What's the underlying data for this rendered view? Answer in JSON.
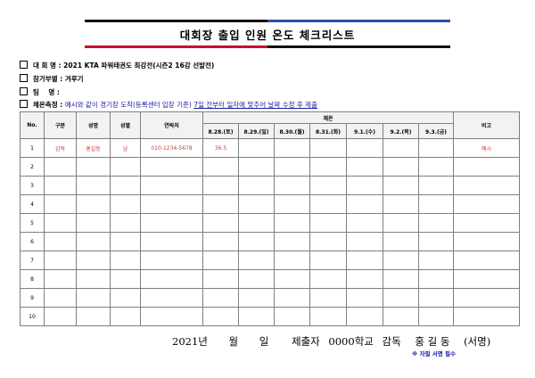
{
  "title": "대회장 출입 인원 온도 체크리스트",
  "info": {
    "event_label": "대 회 명 :",
    "event_value": "2021 KTA 파워태권도 최강전(시즌2 16강 선발전)",
    "division_label": "참가부별 :",
    "division_value": "겨루기",
    "team_label": "팀    명 :",
    "team_value": "",
    "temp_label": "체온측정 :",
    "temp_note_plain": "예시와 같이 경기장 도착(등록센터 입장 기준)",
    "temp_note_underline": "7일 전부터 일자에 맞추어 날짜 수정 후 제출"
  },
  "table": {
    "headers": {
      "no": "No.",
      "category": "구분",
      "name": "성명",
      "gender": "성별",
      "contact": "연락처",
      "temp_group": "체온",
      "remarks": "비고"
    },
    "dates": [
      "8.28.(토)",
      "8.29.(일)",
      "8.30.(월)",
      "8.31.(화)",
      "9.1.(수)",
      "9.2.(목)",
      "9.3.(금)"
    ],
    "rows": [
      {
        "no": "1",
        "category": "감독",
        "name": "홍길동",
        "gender": "남",
        "contact": "010-1234-5678",
        "temps": [
          "36.5",
          "",
          "",
          "",
          "",
          "",
          ""
        ],
        "remarks": "예시"
      },
      {
        "no": "2",
        "category": "",
        "name": "",
        "gender": "",
        "contact": "",
        "temps": [
          "",
          "",
          "",
          "",
          "",
          "",
          ""
        ],
        "remarks": ""
      },
      {
        "no": "3",
        "category": "",
        "name": "",
        "gender": "",
        "contact": "",
        "temps": [
          "",
          "",
          "",
          "",
          "",
          "",
          ""
        ],
        "remarks": ""
      },
      {
        "no": "4",
        "category": "",
        "name": "",
        "gender": "",
        "contact": "",
        "temps": [
          "",
          "",
          "",
          "",
          "",
          "",
          ""
        ],
        "remarks": ""
      },
      {
        "no": "5",
        "category": "",
        "name": "",
        "gender": "",
        "contact": "",
        "temps": [
          "",
          "",
          "",
          "",
          "",
          "",
          ""
        ],
        "remarks": ""
      },
      {
        "no": "6",
        "category": "",
        "name": "",
        "gender": "",
        "contact": "",
        "temps": [
          "",
          "",
          "",
          "",
          "",
          "",
          ""
        ],
        "remarks": ""
      },
      {
        "no": "7",
        "category": "",
        "name": "",
        "gender": "",
        "contact": "",
        "temps": [
          "",
          "",
          "",
          "",
          "",
          "",
          ""
        ],
        "remarks": ""
      },
      {
        "no": "8",
        "category": "",
        "name": "",
        "gender": "",
        "contact": "",
        "temps": [
          "",
          "",
          "",
          "",
          "",
          "",
          ""
        ],
        "remarks": ""
      },
      {
        "no": "9",
        "category": "",
        "name": "",
        "gender": "",
        "contact": "",
        "temps": [
          "",
          "",
          "",
          "",
          "",
          "",
          ""
        ],
        "remarks": ""
      },
      {
        "no": "10",
        "category": "",
        "name": "",
        "gender": "",
        "contact": "",
        "temps": [
          "",
          "",
          "",
          "",
          "",
          "",
          ""
        ],
        "remarks": ""
      }
    ]
  },
  "footer": {
    "year": "2021년",
    "month": "월",
    "day": "일",
    "submitter": "제출자",
    "school": "0000학교",
    "role": "감독",
    "person": "홍 길 동",
    "sign": "(서명)",
    "note": "※ 자필 서명 필수"
  },
  "colors": {
    "accent_blue": "#2f4fa3",
    "accent_red": "#c8102e",
    "example_red": "#d43a3a",
    "note_blue": "#1a1aa6"
  }
}
